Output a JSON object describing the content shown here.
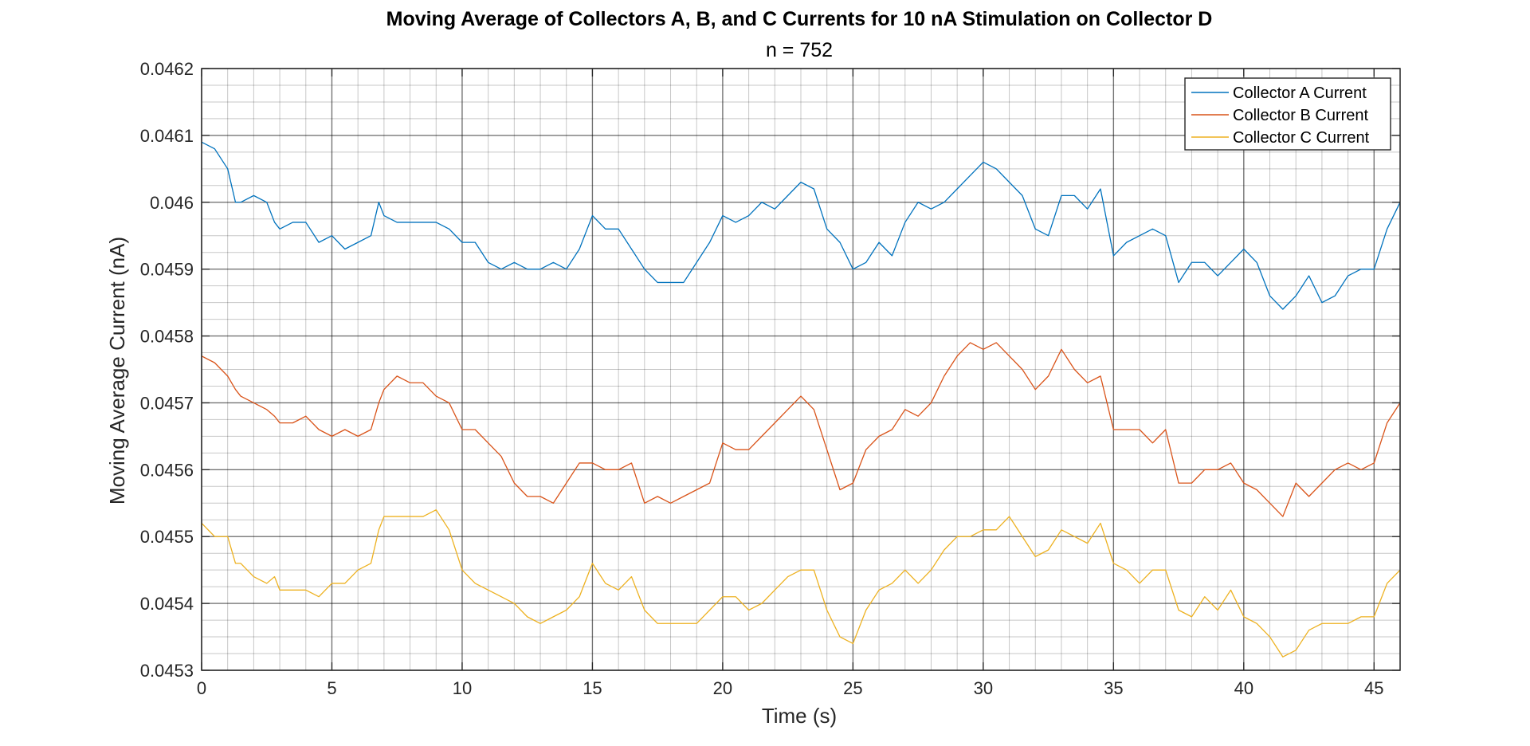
{
  "chart_data": {
    "type": "line",
    "title": "Moving Average of Collectors A, B, and C Currents for 10 nA Stimulation on Collector D",
    "subtitle": "n = 752",
    "xlabel": "Time (s)",
    "ylabel": "Moving Average Current (nA)",
    "xlim": [
      0,
      46
    ],
    "ylim": [
      0.0453,
      0.0462
    ],
    "xticks": [
      0,
      5,
      10,
      15,
      20,
      25,
      30,
      35,
      40,
      45
    ],
    "xtick_labels": [
      "0",
      "5",
      "10",
      "15",
      "20",
      "25",
      "30",
      "35",
      "40",
      "45"
    ],
    "yticks": [
      0.0453,
      0.0454,
      0.0455,
      0.0456,
      0.0457,
      0.0458,
      0.0459,
      0.046,
      0.0461,
      0.0462
    ],
    "ytick_labels": [
      "0.0453",
      "0.0454",
      "0.0455",
      "0.0456",
      "0.0457",
      "0.0458",
      "0.0459",
      "0.046",
      "0.0461",
      "0.0462"
    ],
    "grid": true,
    "minor_grid": true,
    "legend_position": "top-right",
    "series": [
      {
        "name": "Collector A Current",
        "color": "#0072BD",
        "x": [
          0,
          0.5,
          1,
          1.3,
          1.5,
          2,
          2.5,
          2.8,
          3,
          3.5,
          4,
          4.5,
          5,
          5.5,
          6,
          6.5,
          6.8,
          7,
          7.5,
          8,
          8.5,
          9,
          9.5,
          10,
          10.5,
          11,
          11.5,
          12,
          12.5,
          13,
          13.5,
          14,
          14.5,
          15,
          15.5,
          16,
          16.5,
          17,
          17.5,
          18,
          18.5,
          19,
          19.5,
          20,
          20.5,
          21,
          21.5,
          22,
          22.5,
          23,
          23.5,
          24,
          24.5,
          25,
          25.5,
          26,
          26.5,
          27,
          27.5,
          28,
          28.5,
          29,
          29.5,
          30,
          30.5,
          31,
          31.5,
          32,
          32.5,
          33,
          33.5,
          34,
          34.5,
          35,
          35.5,
          36,
          36.5,
          37,
          37.5,
          38,
          38.5,
          39,
          39.5,
          40,
          40.5,
          41,
          41.5,
          42,
          42.5,
          43,
          43.5,
          44,
          44.5,
          45,
          45.5,
          46
        ],
        "y": [
          0.04609,
          0.04608,
          0.04605,
          0.046,
          0.046,
          0.04601,
          0.046,
          0.04597,
          0.04596,
          0.04597,
          0.04597,
          0.04594,
          0.04595,
          0.04593,
          0.04594,
          0.04595,
          0.046,
          0.04598,
          0.04597,
          0.04597,
          0.04597,
          0.04597,
          0.04596,
          0.04594,
          0.04594,
          0.04591,
          0.0459,
          0.04591,
          0.0459,
          0.0459,
          0.04591,
          0.0459,
          0.04593,
          0.04598,
          0.04596,
          0.04596,
          0.04593,
          0.0459,
          0.04588,
          0.04588,
          0.04588,
          0.04591,
          0.04594,
          0.04598,
          0.04597,
          0.04598,
          0.046,
          0.04599,
          0.04601,
          0.04603,
          0.04602,
          0.04596,
          0.04594,
          0.0459,
          0.04591,
          0.04594,
          0.04592,
          0.04597,
          0.046,
          0.04599,
          0.046,
          0.04602,
          0.04604,
          0.04606,
          0.04605,
          0.04603,
          0.04601,
          0.04596,
          0.04595,
          0.04601,
          0.04601,
          0.04599,
          0.04602,
          0.04592,
          0.04594,
          0.04595,
          0.04596,
          0.04595,
          0.04588,
          0.04591,
          0.04591,
          0.04589,
          0.04591,
          0.04593,
          0.04591,
          0.04586,
          0.04584,
          0.04586,
          0.04589,
          0.04585,
          0.04586,
          0.04589,
          0.0459,
          0.0459,
          0.04596,
          0.046
        ]
      },
      {
        "name": "Collector B Current",
        "color": "#D95319",
        "x": [
          0,
          0.5,
          1,
          1.3,
          1.5,
          2,
          2.5,
          2.8,
          3,
          3.5,
          4,
          4.5,
          5,
          5.5,
          6,
          6.5,
          6.8,
          7,
          7.5,
          8,
          8.5,
          9,
          9.5,
          10,
          10.5,
          11,
          11.5,
          12,
          12.5,
          13,
          13.5,
          14,
          14.5,
          15,
          15.5,
          16,
          16.5,
          17,
          17.5,
          18,
          18.5,
          19,
          19.5,
          20,
          20.5,
          21,
          21.5,
          22,
          22.5,
          23,
          23.5,
          24,
          24.5,
          25,
          25.5,
          26,
          26.5,
          27,
          27.5,
          28,
          28.5,
          29,
          29.5,
          30,
          30.5,
          31,
          31.5,
          32,
          32.5,
          33,
          33.5,
          34,
          34.5,
          35,
          35.5,
          36,
          36.5,
          37,
          37.5,
          38,
          38.5,
          39,
          39.5,
          40,
          40.5,
          41,
          41.5,
          42,
          42.5,
          43,
          43.5,
          44,
          44.5,
          45,
          45.5,
          46
        ],
        "y": [
          0.04577,
          0.04576,
          0.04574,
          0.04572,
          0.04571,
          0.0457,
          0.04569,
          0.04568,
          0.04567,
          0.04567,
          0.04568,
          0.04566,
          0.04565,
          0.04566,
          0.04565,
          0.04566,
          0.0457,
          0.04572,
          0.04574,
          0.04573,
          0.04573,
          0.04571,
          0.0457,
          0.04566,
          0.04566,
          0.04564,
          0.04562,
          0.04558,
          0.04556,
          0.04556,
          0.04555,
          0.04558,
          0.04561,
          0.04561,
          0.0456,
          0.0456,
          0.04561,
          0.04555,
          0.04556,
          0.04555,
          0.04556,
          0.04557,
          0.04558,
          0.04564,
          0.04563,
          0.04563,
          0.04565,
          0.04567,
          0.04569,
          0.04571,
          0.04569,
          0.04563,
          0.04557,
          0.04558,
          0.04563,
          0.04565,
          0.04566,
          0.04569,
          0.04568,
          0.0457,
          0.04574,
          0.04577,
          0.04579,
          0.04578,
          0.04579,
          0.04577,
          0.04575,
          0.04572,
          0.04574,
          0.04578,
          0.04575,
          0.04573,
          0.04574,
          0.04566,
          0.04566,
          0.04566,
          0.04564,
          0.04566,
          0.04558,
          0.04558,
          0.0456,
          0.0456,
          0.04561,
          0.04558,
          0.04557,
          0.04555,
          0.04553,
          0.04558,
          0.04556,
          0.04558,
          0.0456,
          0.04561,
          0.0456,
          0.04561,
          0.04567,
          0.0457
        ]
      },
      {
        "name": "Collector C Current",
        "color": "#EDB120",
        "x": [
          0,
          0.5,
          1,
          1.3,
          1.5,
          2,
          2.5,
          2.8,
          3,
          3.5,
          4,
          4.5,
          5,
          5.5,
          6,
          6.5,
          6.8,
          7,
          7.5,
          8,
          8.5,
          9,
          9.5,
          10,
          10.5,
          11,
          11.5,
          12,
          12.5,
          13,
          13.5,
          14,
          14.5,
          15,
          15.5,
          16,
          16.5,
          17,
          17.5,
          18,
          18.5,
          19,
          19.5,
          20,
          20.5,
          21,
          21.5,
          22,
          22.5,
          23,
          23.5,
          24,
          24.5,
          25,
          25.5,
          26,
          26.5,
          27,
          27.5,
          28,
          28.5,
          29,
          29.5,
          30,
          30.5,
          31,
          31.5,
          32,
          32.5,
          33,
          33.5,
          34,
          34.5,
          35,
          35.5,
          36,
          36.5,
          37,
          37.5,
          38,
          38.5,
          39,
          39.5,
          40,
          40.5,
          41,
          41.5,
          42,
          42.5,
          43,
          43.5,
          44,
          44.5,
          45,
          45.5,
          46
        ],
        "y": [
          0.04552,
          0.0455,
          0.0455,
          0.04546,
          0.04546,
          0.04544,
          0.04543,
          0.04544,
          0.04542,
          0.04542,
          0.04542,
          0.04541,
          0.04543,
          0.04543,
          0.04545,
          0.04546,
          0.04551,
          0.04553,
          0.04553,
          0.04553,
          0.04553,
          0.04554,
          0.04551,
          0.04545,
          0.04543,
          0.04542,
          0.04541,
          0.0454,
          0.04538,
          0.04537,
          0.04538,
          0.04539,
          0.04541,
          0.04546,
          0.04543,
          0.04542,
          0.04544,
          0.04539,
          0.04537,
          0.04537,
          0.04537,
          0.04537,
          0.04539,
          0.04541,
          0.04541,
          0.04539,
          0.0454,
          0.04542,
          0.04544,
          0.04545,
          0.04545,
          0.04539,
          0.04535,
          0.04534,
          0.04539,
          0.04542,
          0.04543,
          0.04545,
          0.04543,
          0.04545,
          0.04548,
          0.0455,
          0.0455,
          0.04551,
          0.04551,
          0.04553,
          0.0455,
          0.04547,
          0.04548,
          0.04551,
          0.0455,
          0.04549,
          0.04552,
          0.04546,
          0.04545,
          0.04543,
          0.04545,
          0.04545,
          0.04539,
          0.04538,
          0.04541,
          0.04539,
          0.04542,
          0.04538,
          0.04537,
          0.04535,
          0.04532,
          0.04533,
          0.04536,
          0.04537,
          0.04537,
          0.04537,
          0.04538,
          0.04538,
          0.04543,
          0.04545
        ]
      }
    ]
  }
}
